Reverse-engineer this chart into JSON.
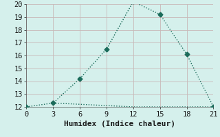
{
  "xlabel": "Humidex (Indice chaleur)",
  "line1_x": [
    0,
    3,
    6,
    9,
    12,
    15,
    18,
    21
  ],
  "line1_y": [
    12,
    12.3,
    14.2,
    16.5,
    20.2,
    19.2,
    16.1,
    12
  ],
  "line2_x": [
    3,
    12,
    21
  ],
  "line2_y": [
    12.3,
    12.0,
    12.0
  ],
  "line_color": "#1a6b5a",
  "bg_color": "#d5f0ec",
  "grid_color": "#c8b8b8",
  "xlim": [
    0,
    21
  ],
  "ylim": [
    12,
    20
  ],
  "xticks": [
    0,
    3,
    6,
    9,
    12,
    15,
    18,
    21
  ],
  "yticks": [
    12,
    13,
    14,
    15,
    16,
    17,
    18,
    19,
    20
  ],
  "xlabel_fontsize": 8,
  "tick_fontsize": 7.5,
  "marker": "D",
  "marker_size": 3.5,
  "linewidth": 1.0,
  "linestyle": ":"
}
